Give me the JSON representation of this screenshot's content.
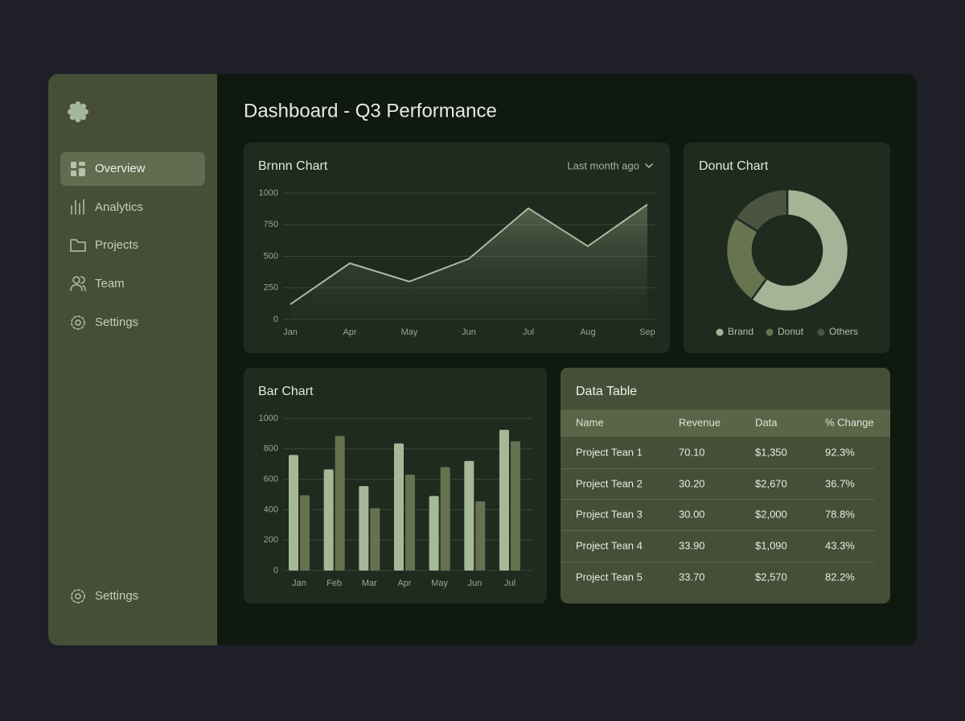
{
  "sidebar": {
    "nav": [
      "Overview",
      "Analytics",
      "Projects",
      "Team",
      "Settings"
    ],
    "footer": "Settings"
  },
  "header": {
    "title": "Dashboard - Q3 Performance"
  },
  "chart_data": [
    {
      "type": "area",
      "title": "Brnnn Chart",
      "filter": "Last month ago",
      "categories": [
        "Jan",
        "Apr",
        "May",
        "Jun",
        "Jul",
        "Aug",
        "Sep"
      ],
      "values": [
        120,
        445,
        300,
        480,
        880,
        580,
        910
      ],
      "color": "#a9bb9d",
      "ylim": [
        0,
        1000
      ],
      "yticks": [
        0,
        250,
        500,
        750,
        1000
      ],
      "grid": true
    },
    {
      "type": "pie",
      "title": "Donut Chart",
      "categories": [
        "Brand",
        "Donut",
        "Others"
      ],
      "values": [
        60,
        24,
        16
      ],
      "colors": [
        "#a3b596",
        "#68744f",
        "#4b5440"
      ]
    },
    {
      "type": "bar",
      "title": "Bar Chart",
      "categories": [
        "Jan",
        "Feb",
        "Mar",
        "Apr",
        "May",
        "Jun",
        "Jul"
      ],
      "series": [
        {
          "color": "#a5b898",
          "values": [
            760,
            665,
            555,
            835,
            490,
            720,
            925
          ]
        },
        {
          "color": "#667150",
          "values": [
            495,
            885,
            410,
            630,
            680,
            455,
            850
          ]
        }
      ],
      "ylim": [
        0,
        1000
      ],
      "yticks": [
        0,
        200,
        400,
        600,
        800,
        1000
      ],
      "grid": true
    }
  ],
  "table": {
    "title": "Data Table",
    "columns": [
      "Name",
      "Revenue",
      "Data",
      "% Change"
    ],
    "rows": [
      [
        "Project Tean 1",
        "70.10",
        "$1,350",
        "92.3%"
      ],
      [
        "Project Tean 2",
        "30.20",
        "$2,670",
        "36.7%"
      ],
      [
        "Project Tean 3",
        "30.00",
        "$2,000",
        "78.8%"
      ],
      [
        "Project Tean 4",
        "33.90",
        "$1,090",
        "43.3%"
      ],
      [
        "Project Tean 5",
        "33.70",
        "$2,570",
        "82.2%"
      ]
    ]
  }
}
